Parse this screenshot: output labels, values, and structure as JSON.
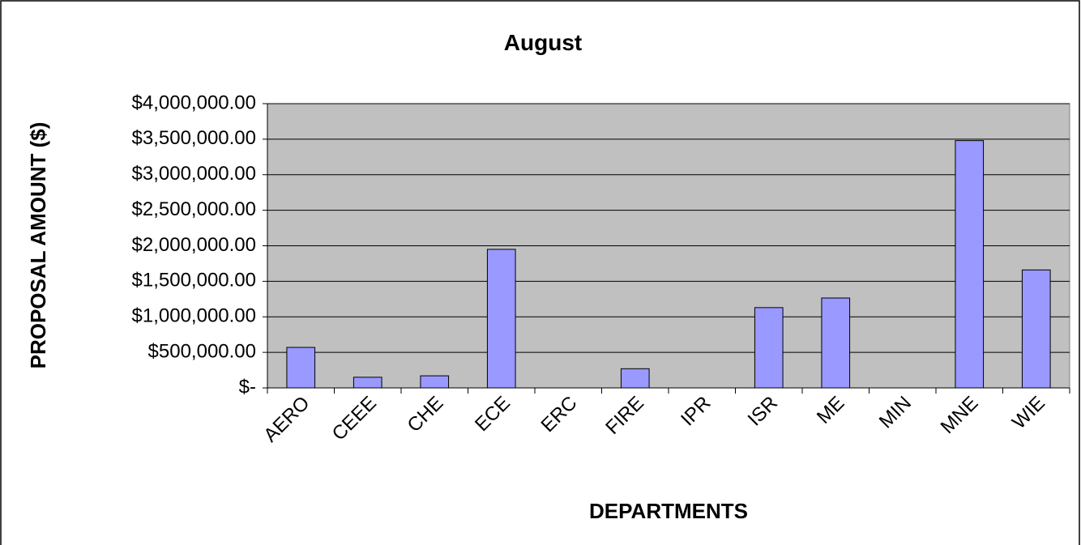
{
  "chart_data": {
    "type": "bar",
    "title": "August",
    "x_label": "DEPARTMENTS",
    "y_label": "PROPOSAL AMOUNT ($)",
    "categories": [
      "AERO",
      "CEEE",
      "CHE",
      "ECE",
      "ERC",
      "FIRE",
      "IPR",
      "ISR",
      "ME",
      "MIN",
      "MNE",
      "WIE"
    ],
    "values": [
      570000,
      150000,
      170000,
      1950000,
      0,
      270000,
      0,
      1130000,
      1265000,
      0,
      3480000,
      1660000
    ],
    "color": "#9999ff",
    "ylim": [
      0,
      4000000
    ],
    "yticks": [
      {
        "value": 0,
        "label": "$-"
      },
      {
        "value": 500000,
        "label": "$500,000.00"
      },
      {
        "value": 1000000,
        "label": "$1,000,000.00"
      },
      {
        "value": 1500000,
        "label": "$1,500,000.00"
      },
      {
        "value": 2000000,
        "label": "$2,000,000.00"
      },
      {
        "value": 2500000,
        "label": "$2,500,000.00"
      },
      {
        "value": 3000000,
        "label": "$3,000,000.00"
      },
      {
        "value": 3500000,
        "label": "$3,500,000.00"
      },
      {
        "value": 4000000,
        "label": "$4,000,000.00"
      }
    ],
    "grid": true
  }
}
